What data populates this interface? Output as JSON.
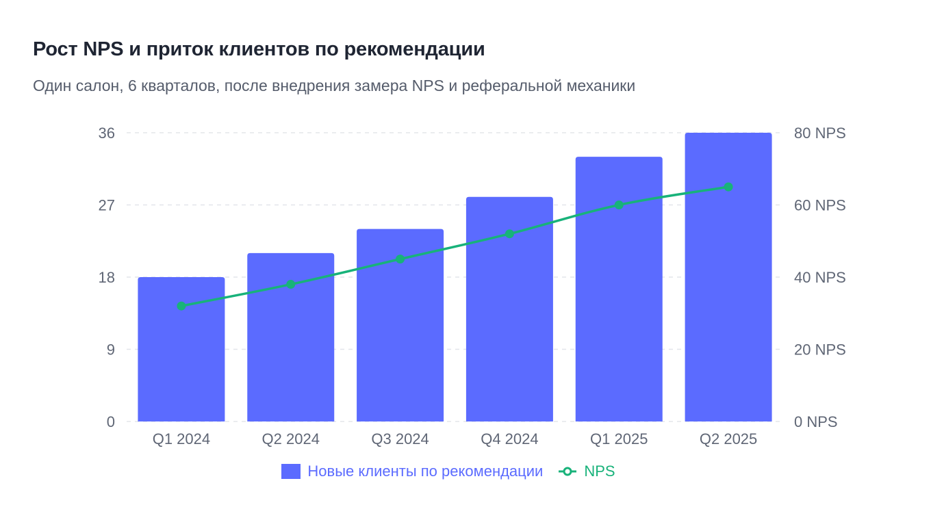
{
  "chart_data": {
    "type": "bar",
    "title": "Рост NPS и приток клиентов по рекомендации",
    "subtitle": "Один салон, 6 кварталов, после внедрения замера NPS и реферальной механики",
    "categories": [
      "Q1 2024",
      "Q2 2024",
      "Q3 2024",
      "Q4 2024",
      "Q1 2025",
      "Q2 2025"
    ],
    "series": [
      {
        "name": "Новые клиенты по рекомендации",
        "type": "bar",
        "axis": "left",
        "color": "#5b6bff",
        "values": [
          18,
          21,
          24,
          28,
          33,
          36
        ]
      },
      {
        "name": "NPS",
        "type": "line",
        "axis": "right",
        "color": "#18b27a",
        "values": [
          32,
          38,
          45,
          52,
          60,
          65
        ]
      }
    ],
    "y_left": {
      "min": 0,
      "max": 36,
      "ticks": [
        "0",
        "9",
        "18",
        "27",
        "36"
      ]
    },
    "y_right": {
      "min": 0,
      "max": 80,
      "ticks": [
        "0 NPS",
        "20 NPS",
        "40 NPS",
        "60 NPS",
        "80 NPS"
      ]
    },
    "grid": true,
    "legend_position": "bottom"
  }
}
